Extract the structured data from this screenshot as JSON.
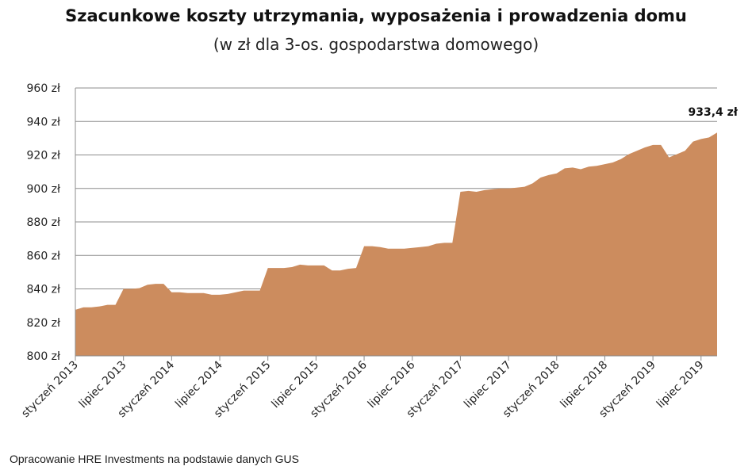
{
  "chart_data": {
    "type": "area",
    "title": "Szacunkowe koszty utrzymania, wyposażenia i prowadzenia domu",
    "subtitle": "(w zł dla 3-os. gospodarstwa domowego)",
    "xlabel": "",
    "ylabel": "",
    "ylim": [
      800,
      960
    ],
    "yticks": [
      "800 zł",
      "820 zł",
      "840 zł",
      "860 zł",
      "880 zł",
      "900 zł",
      "920 zł",
      "940 zł",
      "960 zł"
    ],
    "ytick_values": [
      800,
      820,
      840,
      860,
      880,
      900,
      920,
      940,
      960
    ],
    "xtick_labels": [
      "styczeń 2013",
      "lipiec 2013",
      "styczeń 2014",
      "lipiec 2014",
      "styczeń 2015",
      "lipiec 2015",
      "styczeń 2016",
      "lipiec 2016",
      "styczeń 2017",
      "lipiec 2017",
      "styczeń 2018",
      "lipiec 2018",
      "styczeń 2019",
      "lipiec 2019"
    ],
    "xtick_months": [
      0,
      6,
      12,
      18,
      24,
      30,
      36,
      42,
      48,
      54,
      60,
      66,
      72,
      78
    ],
    "grid": true,
    "fill_color": "#cc8c5e",
    "end_label": "933,4 zł",
    "values": [
      827.5,
      829,
      829,
      829.5,
      830.5,
      830.5,
      840,
      840,
      840.5,
      842.5,
      843,
      843,
      838,
      838,
      837.5,
      837.5,
      837.5,
      836.5,
      836.5,
      837,
      838,
      839,
      839,
      839,
      852.5,
      852.5,
      852.5,
      853,
      854.5,
      854,
      854,
      854,
      851,
      851,
      852,
      852.5,
      865.5,
      865.5,
      865,
      864,
      864,
      864,
      864.5,
      865,
      865.5,
      867,
      867.5,
      867.5,
      898,
      898.5,
      898,
      899,
      899.5,
      900,
      900,
      900.5,
      901,
      903,
      906.5,
      908,
      909,
      912,
      912.5,
      911.5,
      913,
      913.5,
      914.5,
      915.5,
      917.5,
      920.5,
      922.5,
      924.5,
      926,
      926,
      918.5,
      920.5,
      922.5,
      928,
      929.5,
      930.5,
      933.4
    ]
  },
  "source": "Opracowanie HRE Investments na podstawie danych GUS"
}
